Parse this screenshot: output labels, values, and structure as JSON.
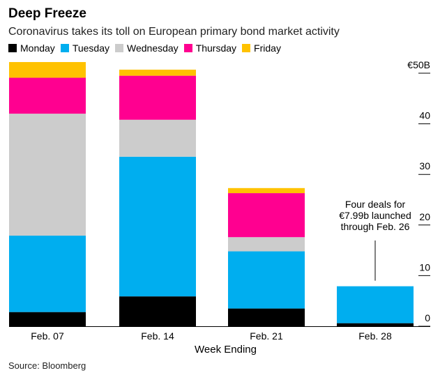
{
  "chart_data": {
    "type": "bar",
    "stacked": true,
    "title": "Deep Freeze",
    "subtitle": "Coronavirus takes its toll on European primary bond market activity",
    "xlabel": "Week Ending",
    "ylabel": "",
    "categories": [
      "Feb. 07",
      "Feb. 14",
      "Feb. 21",
      "Feb. 28"
    ],
    "ylim": [
      0,
      50
    ],
    "yticks": [
      {
        "value": 0,
        "label": "0"
      },
      {
        "value": 10,
        "label": "10"
      },
      {
        "value": 20,
        "label": "20"
      },
      {
        "value": 30,
        "label": "30"
      },
      {
        "value": 40,
        "label": "40"
      },
      {
        "value": 50,
        "label": "€50B"
      }
    ],
    "legend_position": "top-left",
    "series": [
      {
        "name": "Monday",
        "color": "#000000",
        "values": [
          2.8,
          5.9,
          3.5,
          0.6
        ]
      },
      {
        "name": "Tuesday",
        "color": "#00aeef",
        "values": [
          15.1,
          27.6,
          11.3,
          7.3
        ]
      },
      {
        "name": "Wednesday",
        "color": "#cccccc",
        "values": [
          24.1,
          7.3,
          2.8,
          0
        ]
      },
      {
        "name": "Thursday",
        "color": "#ff0090",
        "values": [
          7.1,
          8.7,
          8.7,
          0
        ]
      },
      {
        "name": "Friday",
        "color": "#ffc200",
        "values": [
          3.1,
          1.2,
          1.0,
          0
        ]
      }
    ],
    "annotation": {
      "text_lines": [
        "Four deals for",
        "€7.99b launched",
        "through Feb. 26"
      ],
      "category": "Feb. 28"
    },
    "source": "Source: Bloomberg"
  }
}
